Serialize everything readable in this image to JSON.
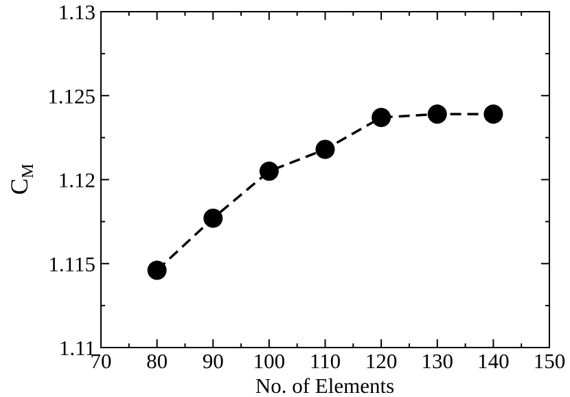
{
  "chart_data": {
    "type": "line",
    "x_label": "No. of Elements",
    "y_label": "C",
    "y_label_sub": "M",
    "x": [
      80,
      90,
      100,
      110,
      120,
      130,
      140
    ],
    "series": [
      {
        "color": "#000000",
        "values": [
          1.1146,
          1.1177,
          1.1205,
          1.1218,
          1.1237,
          1.1239,
          1.1239
        ]
      }
    ],
    "xlim": [
      70,
      150
    ],
    "xticks": [
      70,
      80,
      90,
      100,
      110,
      120,
      130,
      140,
      150
    ],
    "ylim": [
      1.11,
      1.13
    ],
    "yticks": [
      1.11,
      1.115,
      1.12,
      1.125,
      1.13
    ],
    "grid": false
  }
}
